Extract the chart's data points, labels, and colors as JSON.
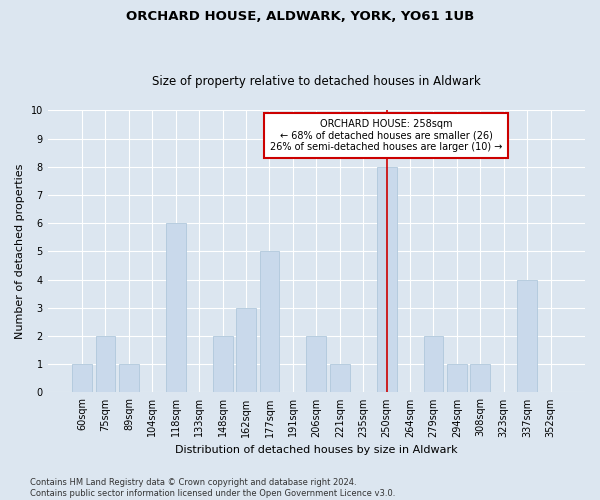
{
  "title": "ORCHARD HOUSE, ALDWARK, YORK, YO61 1UB",
  "subtitle": "Size of property relative to detached houses in Aldwark",
  "xlabel": "Distribution of detached houses by size in Aldwark",
  "ylabel": "Number of detached properties",
  "categories": [
    "60sqm",
    "75sqm",
    "89sqm",
    "104sqm",
    "118sqm",
    "133sqm",
    "148sqm",
    "162sqm",
    "177sqm",
    "191sqm",
    "206sqm",
    "221sqm",
    "235sqm",
    "250sqm",
    "264sqm",
    "279sqm",
    "294sqm",
    "308sqm",
    "323sqm",
    "337sqm",
    "352sqm"
  ],
  "values": [
    1,
    2,
    1,
    0,
    6,
    0,
    2,
    3,
    5,
    0,
    2,
    1,
    0,
    8,
    0,
    2,
    1,
    1,
    0,
    4,
    0
  ],
  "bar_color": "#c9d9eb",
  "bar_edge_color": "#b0c8dc",
  "vline_index": 13,
  "vline_color": "#cc0000",
  "ylim": [
    0,
    10
  ],
  "yticks": [
    0,
    1,
    2,
    3,
    4,
    5,
    6,
    7,
    8,
    9,
    10
  ],
  "annotation_title": "ORCHARD HOUSE: 258sqm",
  "annotation_line1": "← 68% of detached houses are smaller (26)",
  "annotation_line2": "26% of semi-detached houses are larger (10) →",
  "annotation_box_color": "#ffffff",
  "annotation_box_edge": "#cc0000",
  "footer_line1": "Contains HM Land Registry data © Crown copyright and database right 2024.",
  "footer_line2": "Contains public sector information licensed under the Open Government Licence v3.0.",
  "background_color": "#dce6f0",
  "plot_bg_color": "#dce6f0",
  "grid_color": "#ffffff",
  "title_fontsize": 9.5,
  "subtitle_fontsize": 8.5,
  "axis_label_fontsize": 8,
  "tick_fontsize": 7,
  "footer_fontsize": 6,
  "annotation_fontsize": 7
}
